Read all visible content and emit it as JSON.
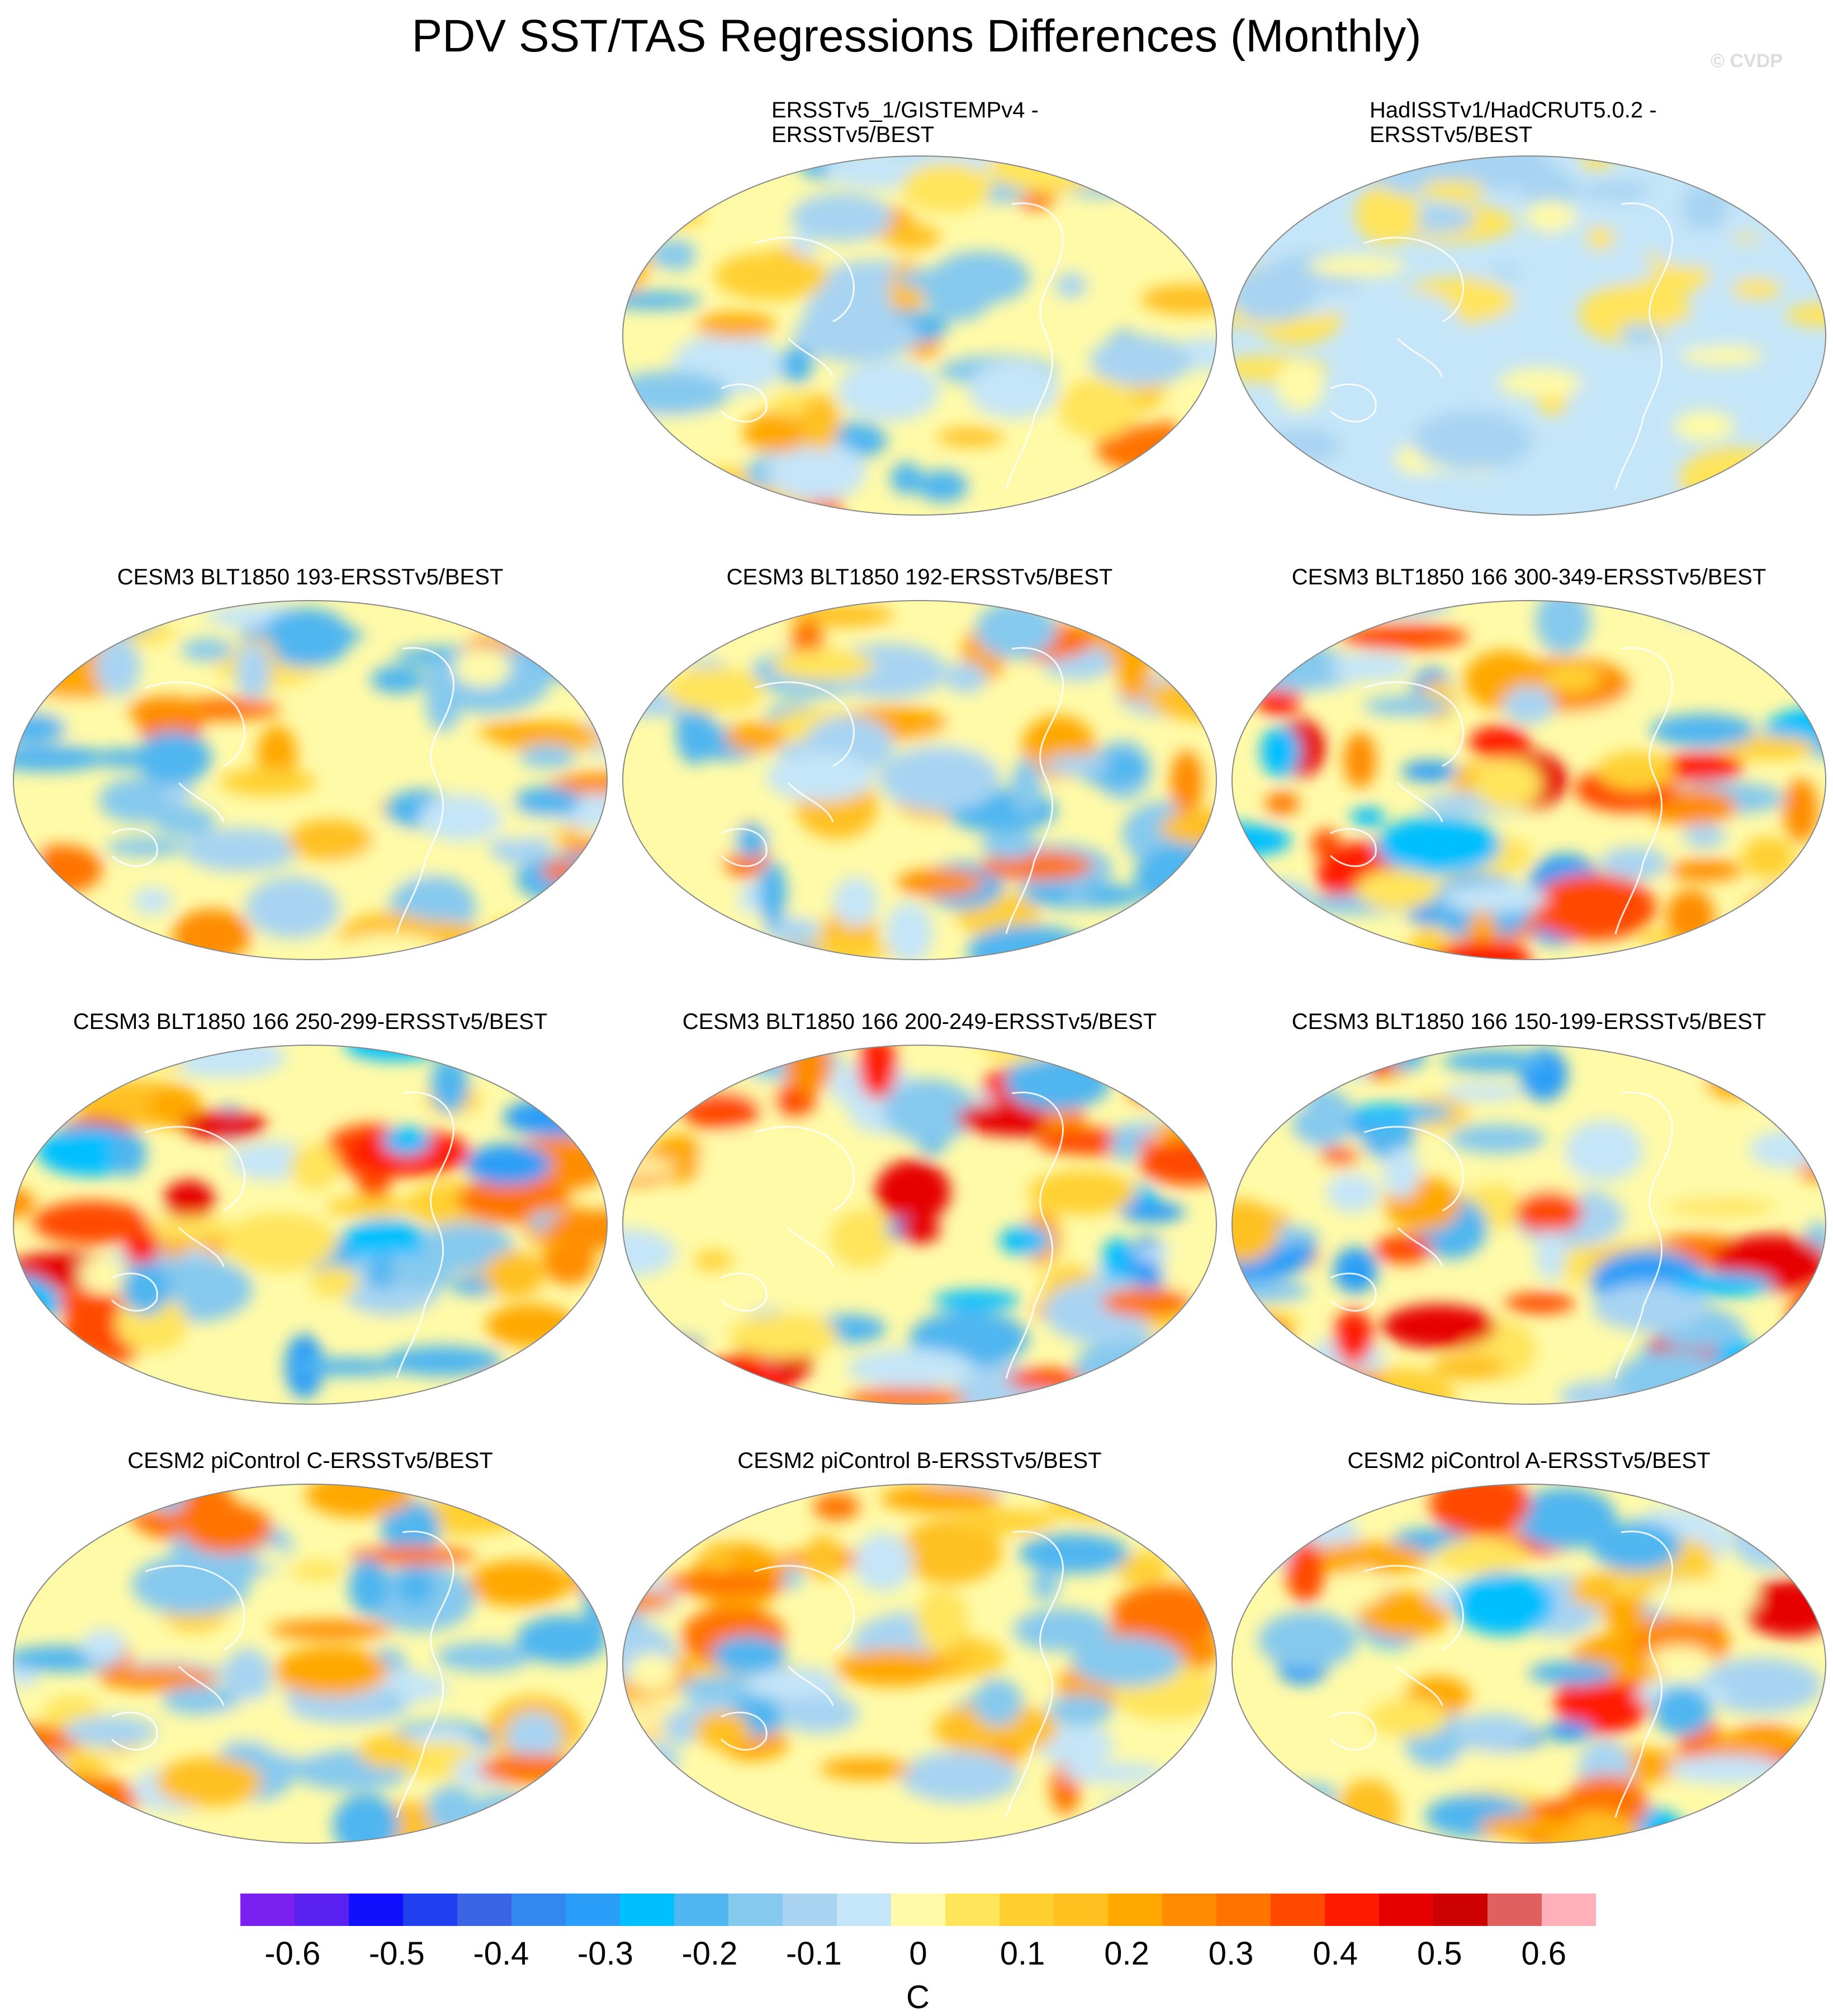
{
  "title": "PDV SST/TAS Regressions Differences (Monthly)",
  "credit": "© CVDP",
  "panels": [
    {
      "id": "ersst-gistemp",
      "title_lines": [
        "ERSSTv5_1/GISTEMPv4 -",
        "ERSSTv5/BEST"
      ],
      "dominant": "mixed"
    },
    {
      "id": "hadisst-hadcrut",
      "title_lines": [
        "HadISSTv1/HadCRUT5.0.2 -",
        "ERSSTv5/BEST"
      ],
      "dominant": "weak"
    },
    {
      "id": "cesm3-193",
      "title_lines": [
        "CESM3 BLT1850 193-ERSSTv5/BEST"
      ],
      "dominant": "mixed"
    },
    {
      "id": "cesm3-192",
      "title_lines": [
        "CESM3 BLT1850 192-ERSSTv5/BEST"
      ],
      "dominant": "mixed"
    },
    {
      "id": "cesm3-300-349",
      "title_lines": [
        "CESM3 BLT1850 166 300-349-ERSSTv5/BEST"
      ],
      "dominant": "strong"
    },
    {
      "id": "cesm3-250-299",
      "title_lines": [
        "CESM3 BLT1850 166 250-299-ERSSTv5/BEST"
      ],
      "dominant": "strong"
    },
    {
      "id": "cesm3-200-249",
      "title_lines": [
        "CESM3 BLT1850 166 200-249-ERSSTv5/BEST"
      ],
      "dominant": "strong"
    },
    {
      "id": "cesm3-150-199",
      "title_lines": [
        "CESM3 BLT1850 166 150-199-ERSSTv5/BEST"
      ],
      "dominant": "strong"
    },
    {
      "id": "cesm2-c",
      "title_lines": [
        "CESM2 piControl C-ERSSTv5/BEST"
      ],
      "dominant": "mixed"
    },
    {
      "id": "cesm2-b",
      "title_lines": [
        "CESM2 piControl B-ERSSTv5/BEST"
      ],
      "dominant": "mixed"
    },
    {
      "id": "cesm2-a",
      "title_lines": [
        "CESM2 piControl A-ERSSTv5/BEST"
      ],
      "dominant": "strong"
    }
  ],
  "colorbar": {
    "unit": "C",
    "colors": [
      "#7b20f0",
      "#5a20f0",
      "#1010ff",
      "#2040f0",
      "#3a64e6",
      "#3388f0",
      "#2a9ef8",
      "#00bfff",
      "#4fb6f0",
      "#86c9ee",
      "#a8d4f2",
      "#c5e5f8",
      "#fffaa8",
      "#ffe45c",
      "#ffd030",
      "#ffc020",
      "#ffa800",
      "#ff8c00",
      "#ff7300",
      "#ff4a00",
      "#ff1a00",
      "#e60000",
      "#cc0000",
      "#e06060",
      "#ffb0b8"
    ],
    "ticks": [
      {
        "label": "-0.6",
        "value": -0.6
      },
      {
        "label": "-0.5",
        "value": -0.5
      },
      {
        "label": "-0.4",
        "value": -0.4
      },
      {
        "label": "-0.3",
        "value": -0.3
      },
      {
        "label": "-0.2",
        "value": -0.2
      },
      {
        "label": "-0.1",
        "value": -0.1
      },
      {
        "label": "0",
        "value": 0
      },
      {
        "label": "0.1",
        "value": 0.1
      },
      {
        "label": "0.2",
        "value": 0.2
      },
      {
        "label": "0.3",
        "value": 0.3
      },
      {
        "label": "0.4",
        "value": 0.4
      },
      {
        "label": "0.5",
        "value": 0.5
      },
      {
        "label": "0.6",
        "value": 0.6
      }
    ],
    "min": -0.65,
    "max": 0.65
  }
}
